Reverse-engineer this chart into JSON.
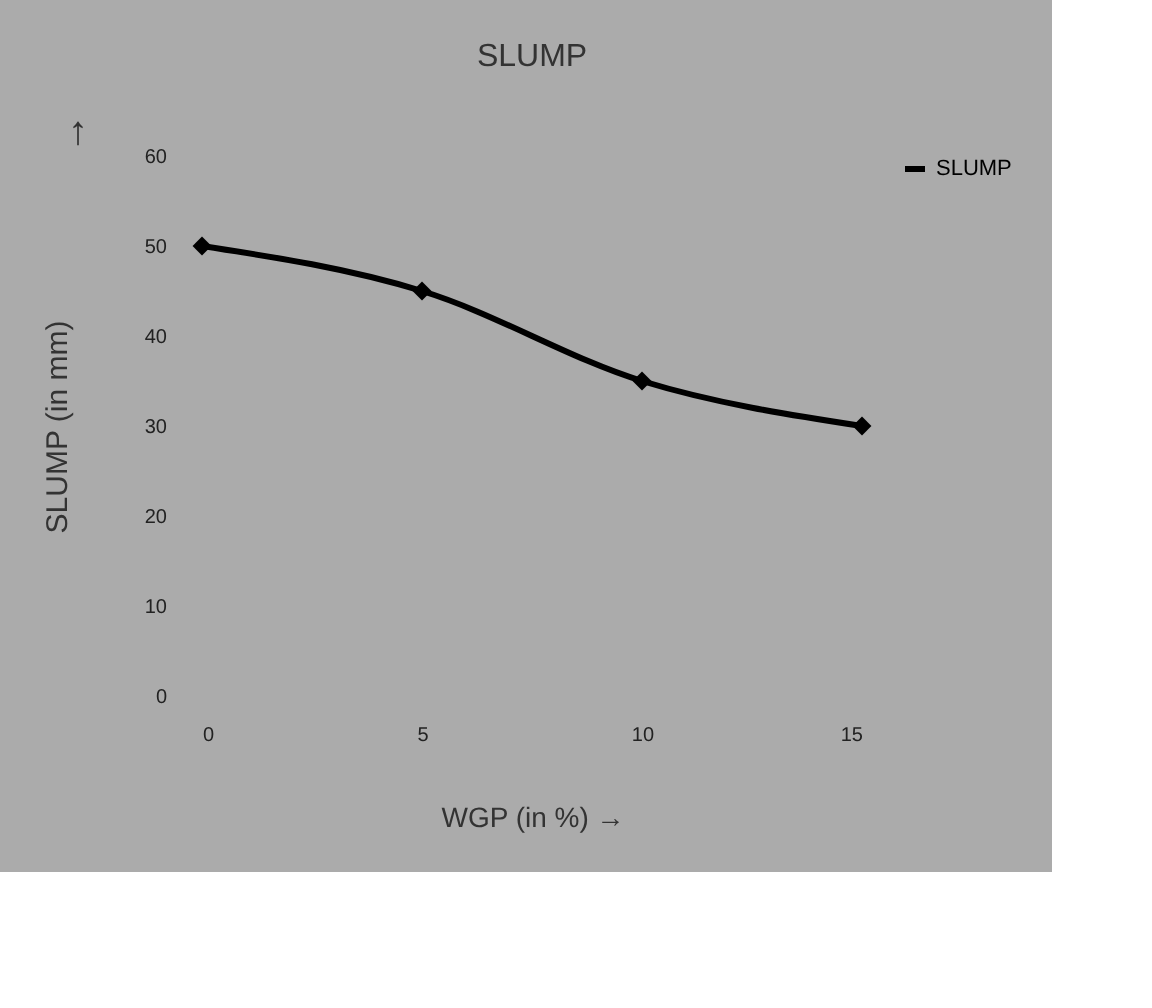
{
  "chart_data": {
    "type": "line",
    "title": "SLUMP",
    "xlabel": "WGP (in %) →",
    "ylabel": "SLUMP (in mm)",
    "annotations": [
      "↑"
    ],
    "categories": [
      "0",
      "5",
      "10",
      "15"
    ],
    "series": [
      {
        "name": "SLUMP",
        "color": "#000000",
        "values": [
          50,
          45,
          35,
          30
        ]
      }
    ],
    "ylim": [
      0,
      60
    ],
    "yticks": [
      0,
      10,
      20,
      30,
      40,
      50,
      60
    ],
    "grid": false,
    "legend": "right",
    "marker": "diamond",
    "line_style": "solid"
  }
}
